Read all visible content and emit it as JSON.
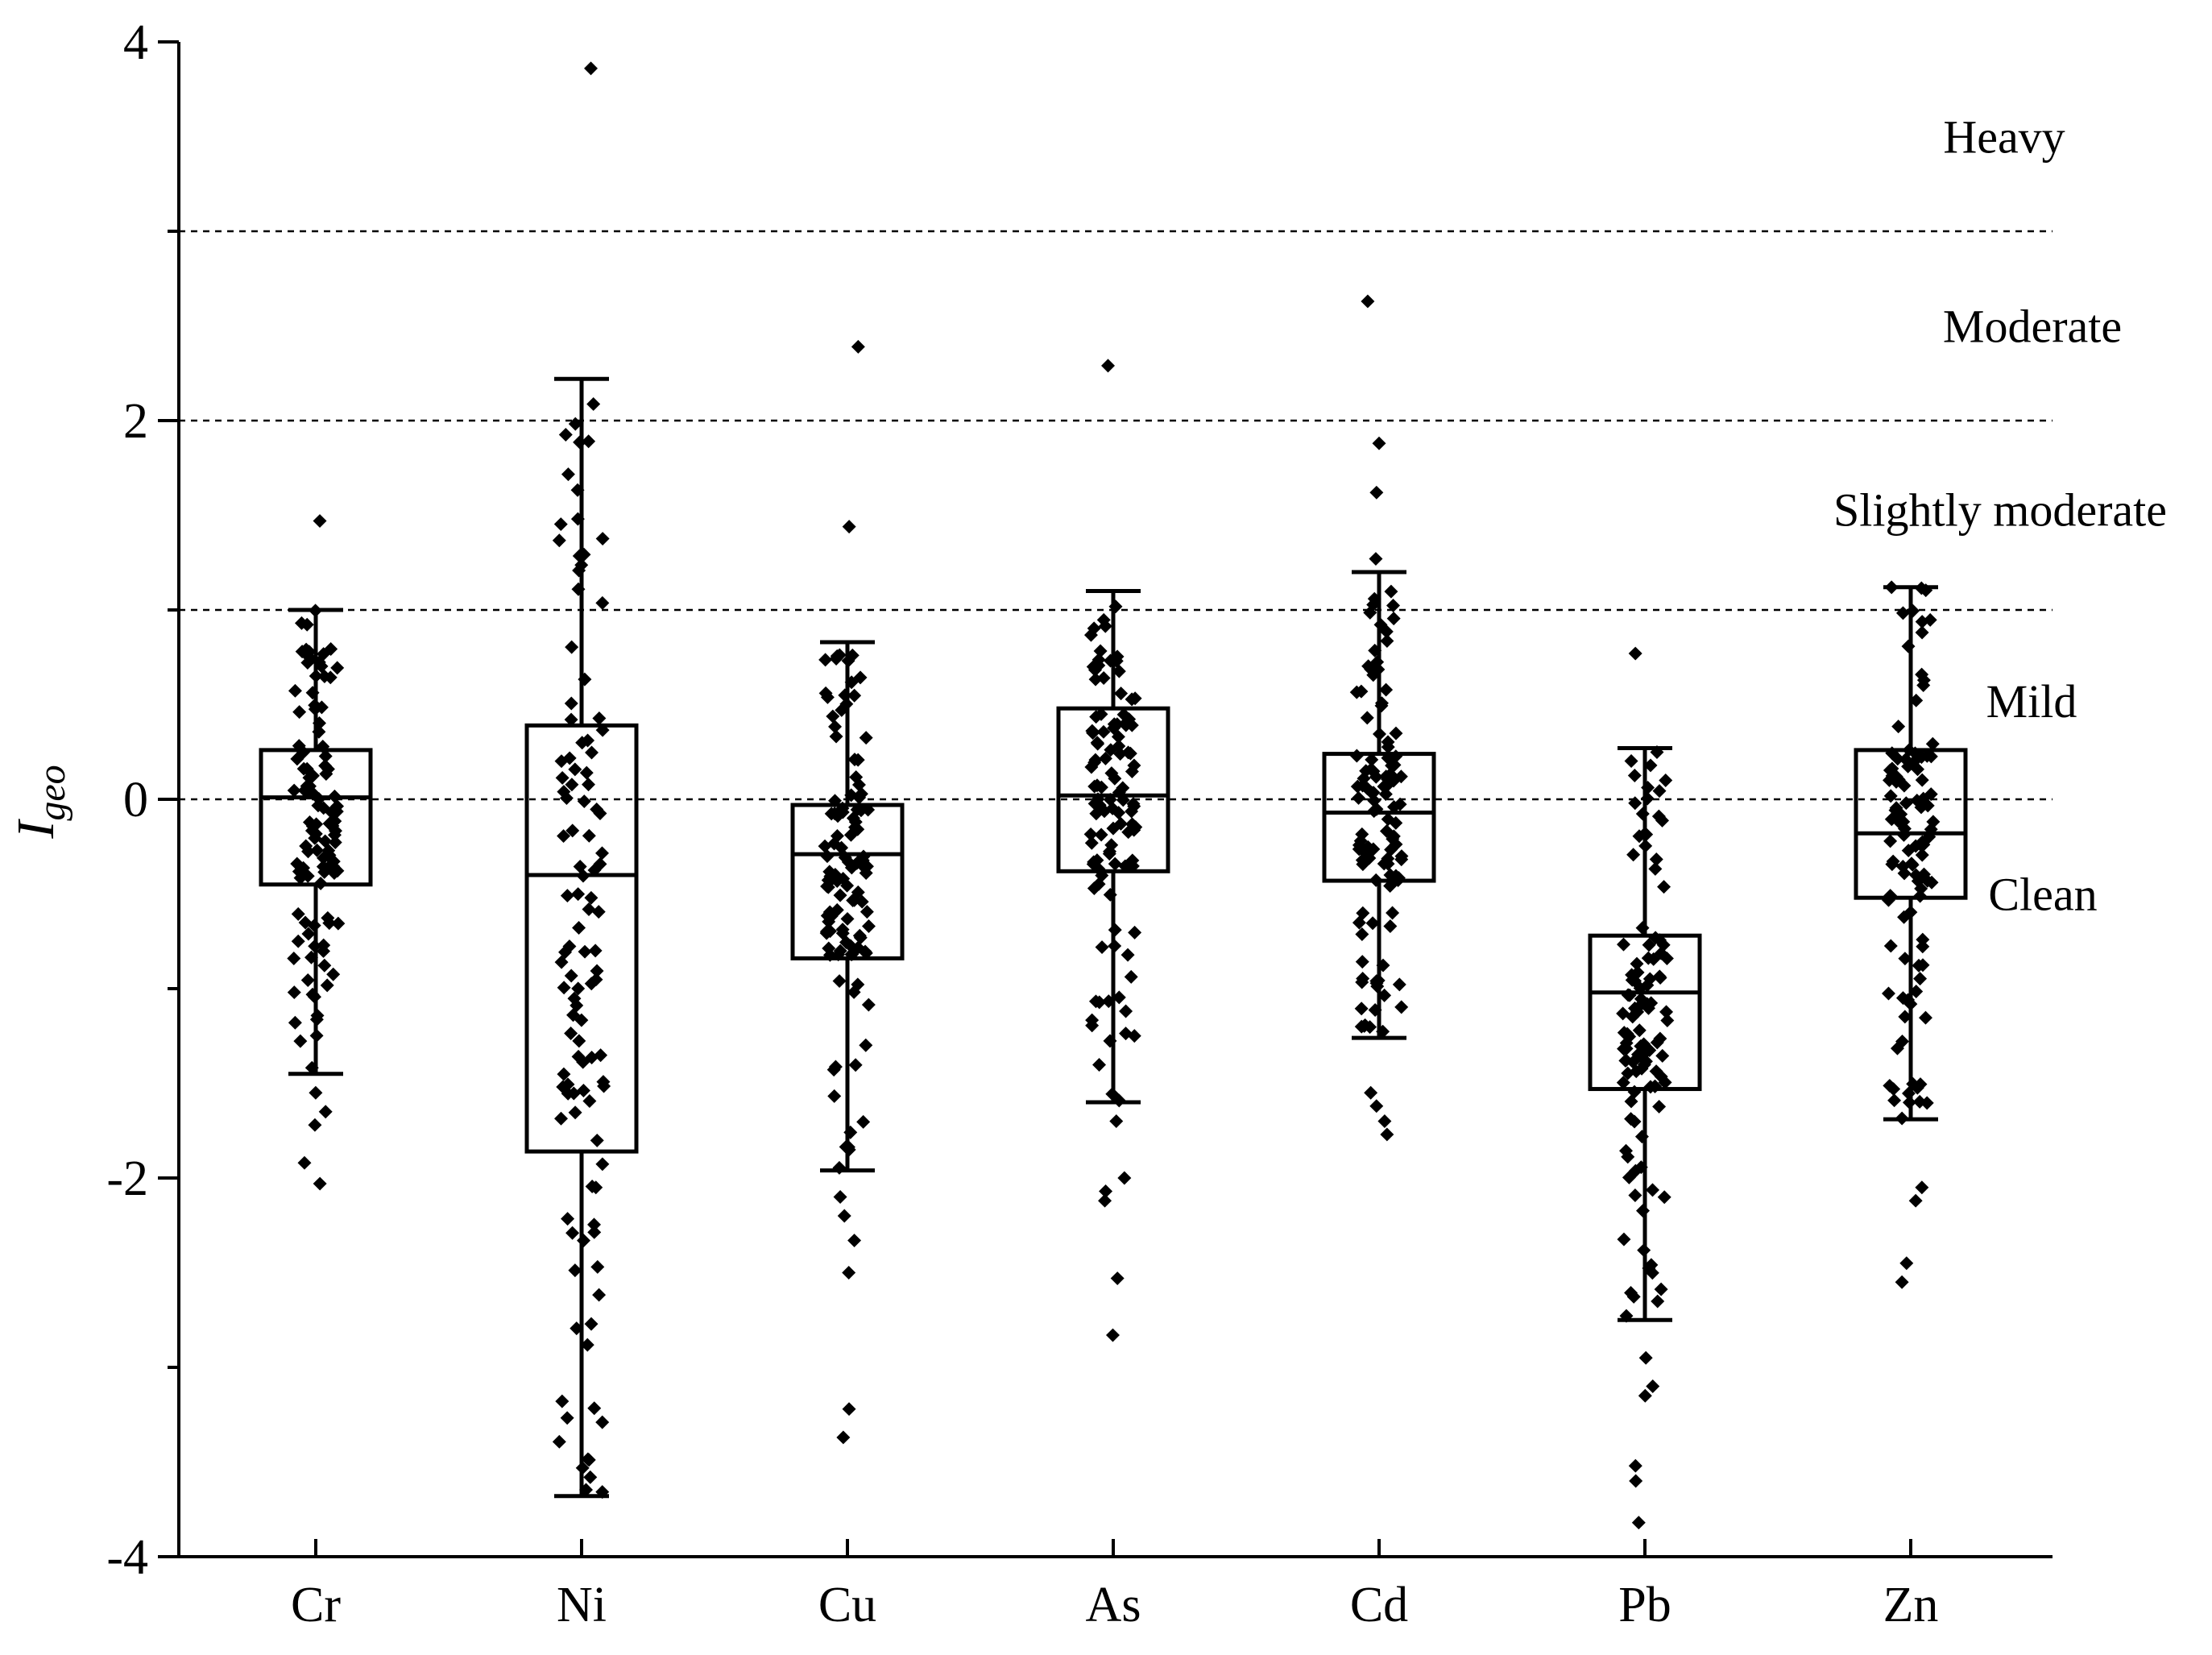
{
  "chart_data": {
    "type": "box",
    "ylabel": "I",
    "ylabel_subscript": "geo",
    "ylim": [
      -4,
      4
    ],
    "yticks": [
      -4,
      -2,
      0,
      2,
      4
    ],
    "categories": [
      "Cr",
      "Ni",
      "Cu",
      "As",
      "Cd",
      "Pb",
      "Zn"
    ],
    "thresholds": [
      0,
      1,
      2,
      3
    ],
    "zone_labels": [
      {
        "text": "Heavy",
        "y": 3.5
      },
      {
        "text": "Moderate",
        "y": 2.5
      },
      {
        "text": "Slightly moderate",
        "y": 1.53
      },
      {
        "text": "Mild",
        "y": 0.52
      },
      {
        "text": "Clean",
        "y": -0.5
      }
    ],
    "boxes": [
      {
        "name": "Cr",
        "whisker_low": -1.45,
        "q1": -0.45,
        "median": 0.01,
        "q3": 0.26,
        "whisker_high": 1.0,
        "outliers": [
          1.47,
          -1.55,
          -1.65,
          -1.72,
          -1.92,
          -2.03
        ]
      },
      {
        "name": "Ni",
        "whisker_low": -3.68,
        "q1": -1.86,
        "median": -0.4,
        "q3": 0.39,
        "whisker_high": 2.22,
        "outliers": [
          3.86
        ]
      },
      {
        "name": "Cu",
        "whisker_low": -1.96,
        "q1": -0.84,
        "median": -0.29,
        "q3": -0.03,
        "whisker_high": 0.83,
        "outliers": [
          2.39,
          1.44,
          -2.1,
          -2.2,
          -2.33,
          -2.5,
          -3.22,
          -3.37
        ]
      },
      {
        "name": "As",
        "whisker_low": -1.6,
        "q1": -0.38,
        "median": 0.02,
        "q3": 0.48,
        "whisker_high": 1.1,
        "outliers": [
          2.29,
          -1.7,
          -2.0,
          -2.07,
          -2.12,
          -2.53,
          -2.83
        ]
      },
      {
        "name": "Cd",
        "whisker_low": -1.26,
        "q1": -0.43,
        "median": -0.07,
        "q3": 0.24,
        "whisker_high": 1.2,
        "outliers": [
          2.63,
          1.88,
          1.62,
          1.27,
          -1.55,
          -1.62,
          -1.7,
          -1.77
        ]
      },
      {
        "name": "Pb",
        "whisker_low": -2.75,
        "q1": -1.53,
        "median": -1.02,
        "q3": -0.72,
        "whisker_high": 0.27,
        "outliers": [
          0.77,
          -2.95,
          -3.1,
          -3.15,
          -3.52,
          -3.6,
          -3.82
        ]
      },
      {
        "name": "Zn",
        "whisker_low": -1.69,
        "q1": -0.52,
        "median": -0.18,
        "q3": 0.26,
        "whisker_high": 1.12,
        "outliers": [
          -2.05,
          -2.12,
          -2.45,
          -2.55
        ]
      }
    ]
  }
}
